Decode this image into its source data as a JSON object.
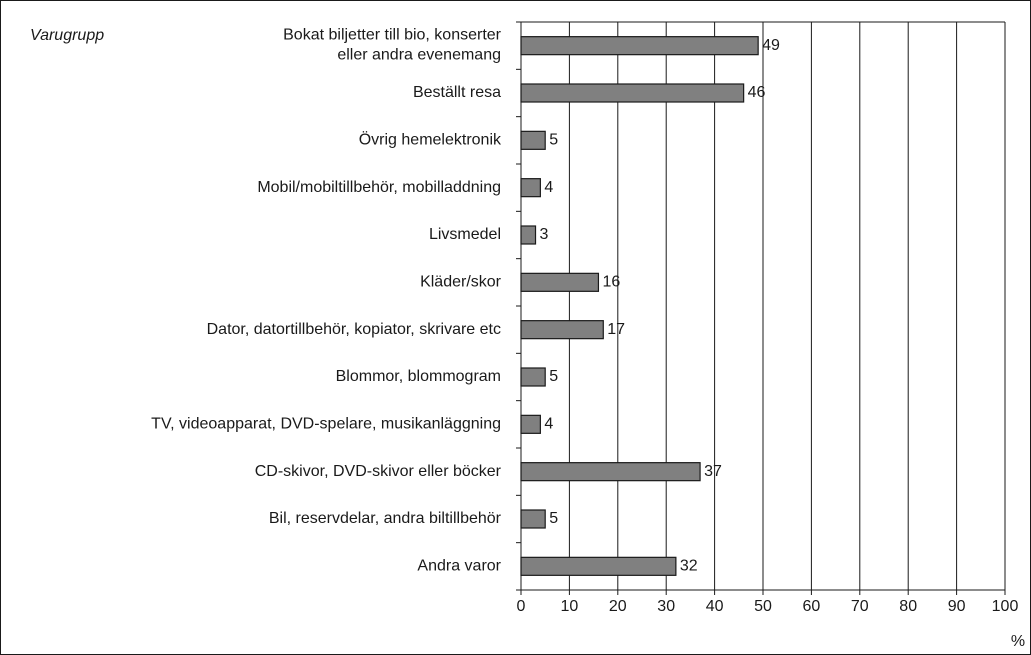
{
  "chart_data": {
    "type": "barh",
    "axis_title": "Varugrupp",
    "xlabel": "%",
    "categories": [
      "Bokat biljetter till bio, konserter\neller andra evenemang",
      "Beställt resa",
      "Övrig hemelektronik",
      "Mobil/mobiltillbehör, mobilladdning",
      "Livsmedel",
      "Kläder/skor",
      "Dator, datortillbehör, kopiator, skrivare etc",
      "Blommor, blommogram",
      "TV, videoapparat, DVD-spelare, musikanläggning",
      "CD-skivor, DVD-skivor eller böcker",
      "Bil, reservdelar, andra biltillbehör",
      "Andra varor"
    ],
    "values": [
      49,
      46,
      5,
      4,
      3,
      16,
      17,
      5,
      4,
      37,
      5,
      32
    ],
    "color": "#808080",
    "xlim": [
      0,
      100
    ],
    "xticks": [
      0,
      10,
      20,
      30,
      40,
      50,
      60,
      70,
      80,
      90,
      100
    ],
    "grid": true
  }
}
